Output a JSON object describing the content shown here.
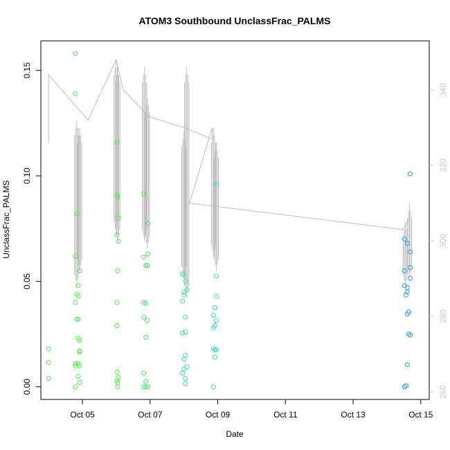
{
  "chart_data": {
    "type": "scatter",
    "title": "ATOM3 Southbound UnclassFrac_PALMS",
    "xlabel": "Date",
    "ylabel": "UnclassFrac_PALMS",
    "xlim": [
      "2017-10-03T18:30",
      "2017-10-15T06:00"
    ],
    "ylim": [
      -0.006,
      0.164
    ],
    "x_ticks": [
      {
        "date": "2017-10-05",
        "label": "Oct 05"
      },
      {
        "date": "2017-10-07",
        "label": "Oct 07"
      },
      {
        "date": "2017-10-09",
        "label": "Oct 09"
      },
      {
        "date": "2017-10-11",
        "label": "Oct 11"
      },
      {
        "date": "2017-10-13",
        "label": "Oct 13"
      },
      {
        "date": "2017-10-15",
        "label": "Oct 15"
      }
    ],
    "y_ticks": [
      0.0,
      0.05,
      0.1,
      0.15
    ],
    "y_tick_labels": [
      "0.00",
      "0.05",
      "0.10",
      "0.15"
    ],
    "y2lim": [
      258,
      353
    ],
    "y2_ticks": [
      260,
      280,
      300,
      320,
      340
    ],
    "y2_tick_labels": [
      "260",
      "280",
      "300",
      "320",
      "340"
    ],
    "point_series": [
      {
        "color": "#4ded41",
        "points": [
          [
            "2017-10-04T00:00",
            0.018
          ],
          [
            "2017-10-04T00:00",
            0.0115
          ],
          [
            "2017-10-04T00:00",
            0.004
          ],
          [
            "2017-10-04T19:00",
            0.158
          ],
          [
            "2017-10-04T19:00",
            0.139
          ],
          [
            "2017-10-04T19:00",
            0.062
          ],
          [
            "2017-10-04T19:00",
            0.04
          ],
          [
            "2017-10-04T19:00",
            0.011
          ],
          [
            "2017-10-04T19:00",
            0.01
          ],
          [
            "2017-10-04T19:00",
            0.0
          ],
          [
            "2017-10-04T20:00",
            0.082
          ],
          [
            "2017-10-04T20:00",
            0.044
          ],
          [
            "2017-10-04T20:00",
            0.032
          ],
          [
            "2017-10-04T21:00",
            0.048
          ],
          [
            "2017-10-04T21:00",
            0.043
          ],
          [
            "2017-10-04T21:00",
            0.032
          ],
          [
            "2017-10-04T21:00",
            0.023
          ],
          [
            "2017-10-04T21:00",
            0.011
          ],
          [
            "2017-10-04T21:00",
            0.005
          ],
          [
            "2017-10-04T22:00",
            0.055
          ],
          [
            "2017-10-04T22:00",
            0.022
          ],
          [
            "2017-10-04T22:00",
            0.017
          ],
          [
            "2017-10-04T22:00",
            0.0165
          ],
          [
            "2017-10-04T22:00",
            0.01
          ],
          [
            "2017-10-04T22:00",
            0.002
          ]
        ]
      },
      {
        "color": "#4ded41",
        "points": [
          [
            "2017-10-06T00:30",
            0.116
          ],
          [
            "2017-10-06T00:30",
            0.091
          ],
          [
            "2017-10-06T00:30",
            0.072
          ],
          [
            "2017-10-06T00:30",
            0.04
          ],
          [
            "2017-10-06T00:30",
            0.029
          ],
          [
            "2017-10-06T00:30",
            0.007
          ],
          [
            "2017-10-06T00:30",
            0.003
          ],
          [
            "2017-10-06T01:00",
            0.09
          ],
          [
            "2017-10-06T01:00",
            0.055
          ],
          [
            "2017-10-06T01:00",
            0.002
          ],
          [
            "2017-10-06T01:00",
            0.0
          ],
          [
            "2017-10-06T01:30",
            0.08
          ],
          [
            "2017-10-06T01:30",
            0.069
          ],
          [
            "2017-10-06T01:30",
            0.0045
          ]
        ]
      },
      {
        "color": "#46e85a",
        "points": [
          [
            "2017-10-06T19:30",
            0.0915
          ],
          [
            "2017-10-06T19:30",
            0.0615
          ],
          [
            "2017-10-06T19:30",
            0.04
          ],
          [
            "2017-10-06T19:30",
            0.033
          ],
          [
            "2017-10-06T19:30",
            0.0065
          ],
          [
            "2017-10-06T19:30",
            0.0
          ],
          [
            "2017-10-06T21:00",
            0.0575
          ],
          [
            "2017-10-06T21:00",
            0.0395
          ],
          [
            "2017-10-06T21:00",
            0.0235
          ],
          [
            "2017-10-06T21:00",
            0.0025
          ],
          [
            "2017-10-06T21:00",
            0.0
          ],
          [
            "2017-10-06T22:00",
            0.0575
          ],
          [
            "2017-10-06T22:00",
            0.0315
          ],
          [
            "2017-10-06T22:30",
            0.0775
          ],
          [
            "2017-10-06T22:30",
            0.063
          ],
          [
            "2017-10-06T22:30",
            0.0
          ]
        ]
      },
      {
        "color": "#35e3a8",
        "points": [
          [
            "2017-10-07T23:00",
            0.0535
          ],
          [
            "2017-10-07T23:00",
            0.0405
          ],
          [
            "2017-10-07T23:00",
            0.0255
          ],
          [
            "2017-10-07T23:00",
            0.0065
          ],
          [
            "2017-10-08T00:00",
            0.053
          ],
          [
            "2017-10-08T00:00",
            0.045
          ],
          [
            "2017-10-08T00:00",
            0.0435
          ],
          [
            "2017-10-08T00:00",
            0.013
          ],
          [
            "2017-10-08T00:00",
            0.0085
          ],
          [
            "2017-10-08T01:00",
            0.05
          ],
          [
            "2017-10-08T01:00",
            0.033
          ],
          [
            "2017-10-08T01:00",
            0.026
          ],
          [
            "2017-10-08T01:00",
            0.015
          ],
          [
            "2017-10-08T01:00",
            0.004
          ],
          [
            "2017-10-08T01:00",
            0.0015
          ],
          [
            "2017-10-08T02:00",
            0.046
          ],
          [
            "2017-10-08T02:00",
            0.0095
          ]
        ]
      },
      {
        "color": "#2ee3c4",
        "points": [
          [
            "2017-10-08T21:00",
            0.034
          ],
          [
            "2017-10-08T21:00",
            0.028
          ],
          [
            "2017-10-08T21:00",
            0.018
          ],
          [
            "2017-10-08T21:00",
            0.0
          ],
          [
            "2017-10-08T22:00",
            0.0375
          ],
          [
            "2017-10-08T22:00",
            0.0375
          ],
          [
            "2017-10-08T22:00",
            0.029
          ],
          [
            "2017-10-08T22:00",
            0.0175
          ],
          [
            "2017-10-08T22:00",
            0.014
          ],
          [
            "2017-10-08T23:00",
            0.096
          ],
          [
            "2017-10-08T23:00",
            0.0525
          ],
          [
            "2017-10-08T23:00",
            0.043
          ],
          [
            "2017-10-08T23:00",
            0.0315
          ],
          [
            "2017-10-08T23:00",
            0.0175
          ]
        ]
      },
      {
        "color": "#1e9ee8",
        "points": [
          [
            "2017-10-14T12:30",
            0.07
          ],
          [
            "2017-10-14T12:30",
            0.055
          ],
          [
            "2017-10-14T12:30",
            0.048
          ],
          [
            "2017-10-14T12:30",
            0.0
          ],
          [
            "2017-10-14T13:30",
            0.0435
          ],
          [
            "2017-10-14T13:30",
            0.0005
          ],
          [
            "2017-10-14T14:30",
            0.068
          ],
          [
            "2017-10-14T14:30",
            0.047
          ],
          [
            "2017-10-14T14:30",
            0.045
          ],
          [
            "2017-10-14T14:30",
            0.0345
          ],
          [
            "2017-10-14T14:30",
            0.0105
          ],
          [
            "2017-10-14T15:30",
            0.0355
          ],
          [
            "2017-10-14T15:30",
            0.025
          ],
          [
            "2017-10-14T16:30",
            0.101
          ],
          [
            "2017-10-14T16:30",
            0.064
          ],
          [
            "2017-10-14T16:30",
            0.0565
          ],
          [
            "2017-10-14T16:30",
            0.0515
          ],
          [
            "2017-10-14T16:30",
            0.0245
          ]
        ]
      }
    ],
    "secondary_line": {
      "color": "#bebebe",
      "points": [
        [
          "2017-10-04T00:00",
          326
        ],
        [
          "2017-10-04T00:00",
          344
        ],
        [
          "2017-10-05T04:00",
          332
        ],
        [
          "2017-10-06T00:00",
          348
        ],
        [
          "2017-10-06T05:00",
          340
        ],
        [
          "2017-10-06T23:00",
          333
        ],
        [
          "2017-10-08T00:00",
          330
        ],
        [
          "2017-10-08T20:00",
          327
        ],
        [
          "2017-10-08T20:00",
          330
        ],
        [
          "2017-10-08T04:00",
          310
        ],
        [
          "2017-10-14T11:30",
          303
        ],
        [
          "2017-10-14T16:00",
          306
        ]
      ],
      "note": ""
    },
    "vertical_profiles": [
      {
        "date": "2017-10-04T20:00",
        "y2_min": 288,
        "y2_max": 332
      },
      {
        "date": "2017-10-04T22:00",
        "y2_min": 292,
        "y2_max": 330
      },
      {
        "date": "2017-10-06T00:00",
        "y2_min": 302,
        "y2_max": 348
      },
      {
        "date": "2017-10-06T01:00",
        "y2_min": 300,
        "y2_max": 346
      },
      {
        "date": "2017-10-06T20:00",
        "y2_min": 300,
        "y2_max": 346
      },
      {
        "date": "2017-10-06T22:00",
        "y2_min": 298,
        "y2_max": 338
      },
      {
        "date": "2017-10-08T00:00",
        "y2_min": 290,
        "y2_max": 329
      },
      {
        "date": "2017-10-08T02:00",
        "y2_min": 285,
        "y2_max": 346
      },
      {
        "date": "2017-10-08T21:00",
        "y2_min": 296,
        "y2_max": 330
      },
      {
        "date": "2017-10-08T23:00",
        "y2_min": 292,
        "y2_max": 326
      },
      {
        "date": "2017-10-14T13:00",
        "y2_min": 288,
        "y2_max": 305
      },
      {
        "date": "2017-10-14T16:00",
        "y2_min": 290,
        "y2_max": 310
      }
    ]
  }
}
